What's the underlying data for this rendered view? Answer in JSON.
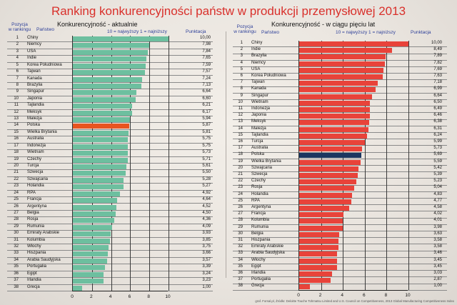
{
  "title": "Ranking konkurencyjności państw w produkcji przemysłowej 2013",
  "footer": "graf. Forsal.pl, Źródło: Deloitte Touche Tohmatsu Limited and U.S. Council on Competitiveness, 2013 Global Manufacturing Competitiveness Index",
  "left": {
    "subtitle": "Konkurencyjność - aktualnie",
    "col_rank": "Pozycja\nw rankingu",
    "col_rank_l1": "Pozycja",
    "col_rank_l2": "w rankingu",
    "col_country": "Państwo",
    "scale_note": "10 = najwyższy  1 = najniższy",
    "col_score": "Punktacja",
    "bar_color": "#6dbf9f",
    "highlight_color": "#e85420"
  },
  "right": {
    "subtitle": "Konkurencyjność - w ciągu pięciu lat",
    "col_rank_l1": "Pozycja",
    "col_rank_l2": "w rankingu",
    "col_country": "Państwo",
    "scale_note": "10 = najwyższy  1 = najniższy",
    "col_score": "Punktacja",
    "bar_color": "#e8433a",
    "highlight_color": "#1b3660"
  },
  "chart_data": [
    {
      "type": "bar",
      "orientation": "horizontal",
      "title": "Konkurencyjność - aktualnie",
      "xlabel": "Punktacja (10 = najwyższy, 1 = najniższy)",
      "xlim": [
        0,
        10
      ],
      "xticks": [
        0,
        2,
        4,
        6,
        8,
        10
      ],
      "grid": true,
      "highlight": "Polska",
      "ranks": [
        1,
        2,
        3,
        4,
        5,
        6,
        7,
        8,
        9,
        10,
        11,
        12,
        13,
        14,
        15,
        16,
        17,
        18,
        19,
        20,
        21,
        22,
        23,
        24,
        25,
        26,
        27,
        28,
        29,
        30,
        31,
        32,
        33,
        34,
        35,
        36,
        37,
        38
      ],
      "categories": [
        "Chiny",
        "Niemcy",
        "USA",
        "Indie",
        "Korea Południowa",
        "Tajwan",
        "Kanada",
        "Brazylia",
        "Singapur",
        "Japonia",
        "Tajlandia",
        "Meksyk",
        "Malezja",
        "Polska",
        "Wielka Brytania",
        "Australia",
        "Indonezja",
        "Wietnam",
        "Czechy",
        "Turcja",
        "Szwecja",
        "Szwajcaria",
        "Holandia",
        "RPA",
        "Francja",
        "Argentyna",
        "Belgia",
        "Rosja",
        "Rumunia",
        "Emiraty Arabskie",
        "Kolumbia",
        "Włochy",
        "Hiszpania",
        "Arabia Saudyjska",
        "Portugalia",
        "Egipt",
        "Irlandia",
        "Grecja"
      ],
      "values": [
        10.0,
        7.98,
        7.84,
        7.65,
        7.59,
        7.57,
        7.24,
        7.13,
        6.64,
        6.6,
        6.21,
        6.17,
        5.94,
        5.87,
        5.81,
        5.75,
        5.75,
        5.73,
        5.71,
        5.61,
        5.5,
        5.28,
        5.27,
        4.92,
        4.64,
        4.52,
        4.5,
        4.36,
        4.09,
        3.93,
        3.85,
        3.75,
        3.66,
        3.57,
        3.39,
        3.24,
        3.23,
        1.0
      ],
      "labels": [
        "10,00",
        "7,98",
        "7,84",
        "7,65",
        "7,59",
        "7,57",
        "7,24",
        "7,13",
        "6,64",
        "6,60",
        "6,21",
        "6,17",
        "5,94",
        "5,87",
        "5,81",
        "5,75",
        "5,75",
        "5,73",
        "5,71",
        "5,61",
        "5,50",
        "5,28",
        "5,27",
        "4,92",
        "4,64",
        "4,52",
        "4,50",
        "4,36",
        "4,09",
        "3,93",
        "3,85",
        "3,75",
        "3,66",
        "3,57",
        "3,39",
        "3,24",
        "3,23",
        "1,00"
      ]
    },
    {
      "type": "bar",
      "orientation": "horizontal",
      "title": "Konkurencyjność - w ciągu pięciu lat",
      "xlabel": "Punktacja (10 = najwyższy, 1 = najniższy)",
      "xlim": [
        0,
        10
      ],
      "xticks": [
        0,
        2,
        4,
        6,
        8,
        10
      ],
      "grid": true,
      "highlight": "Polska",
      "ranks": [
        1,
        2,
        3,
        4,
        5,
        6,
        7,
        8,
        9,
        10,
        11,
        12,
        13,
        14,
        15,
        16,
        17,
        18,
        19,
        20,
        21,
        22,
        23,
        24,
        25,
        26,
        27,
        28,
        29,
        30,
        31,
        32,
        33,
        34,
        35,
        36,
        37,
        38
      ],
      "categories": [
        "Chiny",
        "Indie",
        "Brazylia",
        "Niemcy",
        "USA",
        "Korea Południowa",
        "Tajwan",
        "Kanada",
        "Singapur",
        "Wietnam",
        "Indonezja",
        "Japonia",
        "Meksyk",
        "Malezja",
        "Tajlandia",
        "Turcja",
        "Australia",
        "Polska",
        "Wielka Brytania",
        "Szwajcaria",
        "Szwecja",
        "Czechy",
        "Rosja",
        "Holandia",
        "RPA",
        "Argentyna",
        "Francja",
        "Kolumbia",
        "Rumunia",
        "Belgia",
        "Hiszpania",
        "Emiraty Arabskie",
        "Arabia Saudyjska",
        "Włochy",
        "Egipt",
        "Irlandia",
        "Portugalia",
        "Grecja"
      ],
      "values": [
        10.0,
        8.49,
        7.89,
        7.82,
        7.69,
        7.63,
        7.18,
        6.99,
        6.64,
        6.5,
        6.49,
        6.46,
        6.38,
        6.31,
        6.24,
        5.99,
        5.73,
        5.69,
        5.59,
        5.42,
        5.39,
        5.23,
        5.04,
        4.83,
        4.77,
        4.58,
        4.02,
        4.01,
        3.98,
        3.63,
        3.58,
        3.58,
        3.46,
        3.45,
        3.45,
        3.03,
        2.87,
        1.0
      ],
      "labels": [
        "10,00",
        "8,49",
        "7,89",
        "7,82",
        "7,69",
        "7,63",
        "7,18",
        "6,99",
        "6,64",
        "6,50",
        "6,49",
        "6,46",
        "6,38",
        "6,31",
        "6,24",
        "5,99",
        "5,73",
        "5,69",
        "5,59",
        "5,42",
        "5,39",
        "5,23",
        "5,04",
        "4,83",
        "4,77",
        "4,58",
        "4,02",
        "4,01",
        "3,98",
        "3,63",
        "3,58",
        "3,58",
        "3,46",
        "3,45",
        "3,45",
        "3,03",
        "2,87",
        "1,00"
      ]
    }
  ]
}
